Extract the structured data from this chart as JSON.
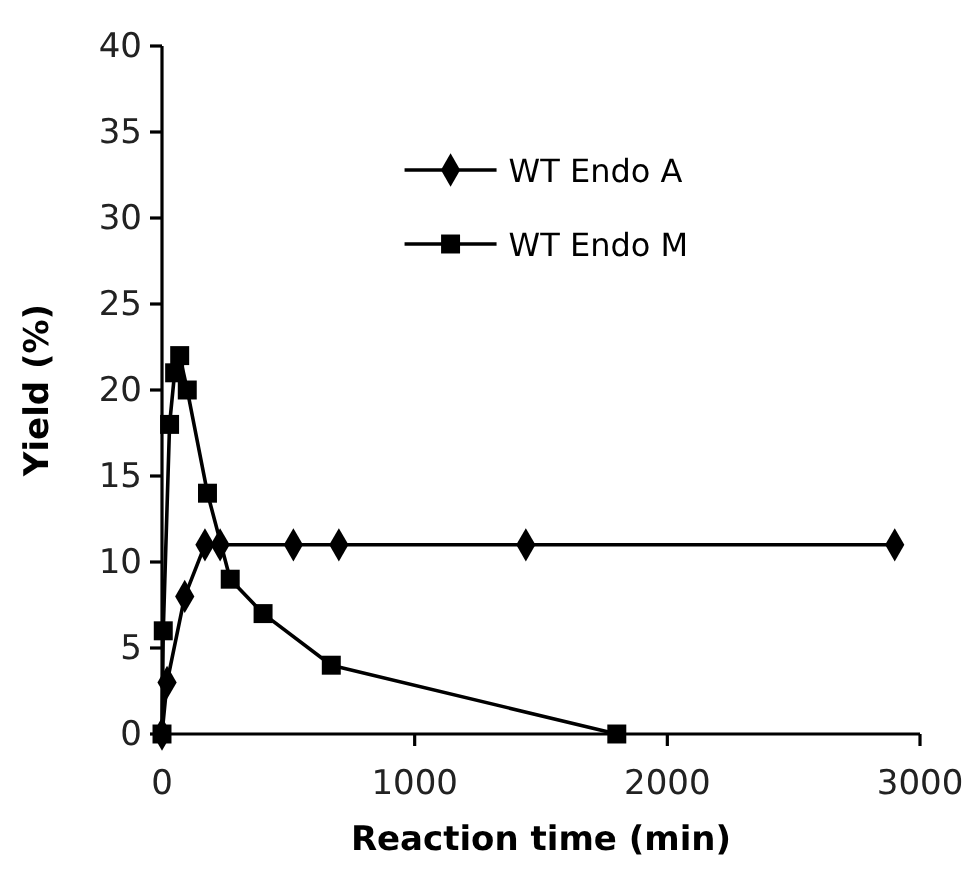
{
  "chart_data": {
    "type": "line",
    "xlabel": "Reaction time (min)",
    "ylabel": "Yield (%)",
    "xlim": [
      0,
      3000
    ],
    "xticks": [
      0,
      1000,
      2000,
      3000
    ],
    "ylim": [
      0,
      40
    ],
    "yticks": [
      0,
      5,
      10,
      15,
      20,
      25,
      30,
      35,
      40
    ],
    "grid": false,
    "legend": "top",
    "line_style": "solid",
    "series": [
      {
        "name": "WT Endo A",
        "color": "#000000",
        "marker": "diamond",
        "x": [
          0,
          20,
          90,
          170,
          230,
          520,
          700,
          1440,
          2900
        ],
        "values": [
          0,
          3,
          8,
          11,
          11,
          11,
          11,
          11,
          11
        ]
      },
      {
        "name": "WT Endo M",
        "color": "#000000",
        "marker": "square",
        "x": [
          0,
          5,
          30,
          50,
          70,
          100,
          180,
          270,
          400,
          670,
          1800
        ],
        "values": [
          0,
          6,
          18,
          21,
          22,
          20,
          14,
          9,
          7,
          4,
          0
        ]
      }
    ]
  }
}
